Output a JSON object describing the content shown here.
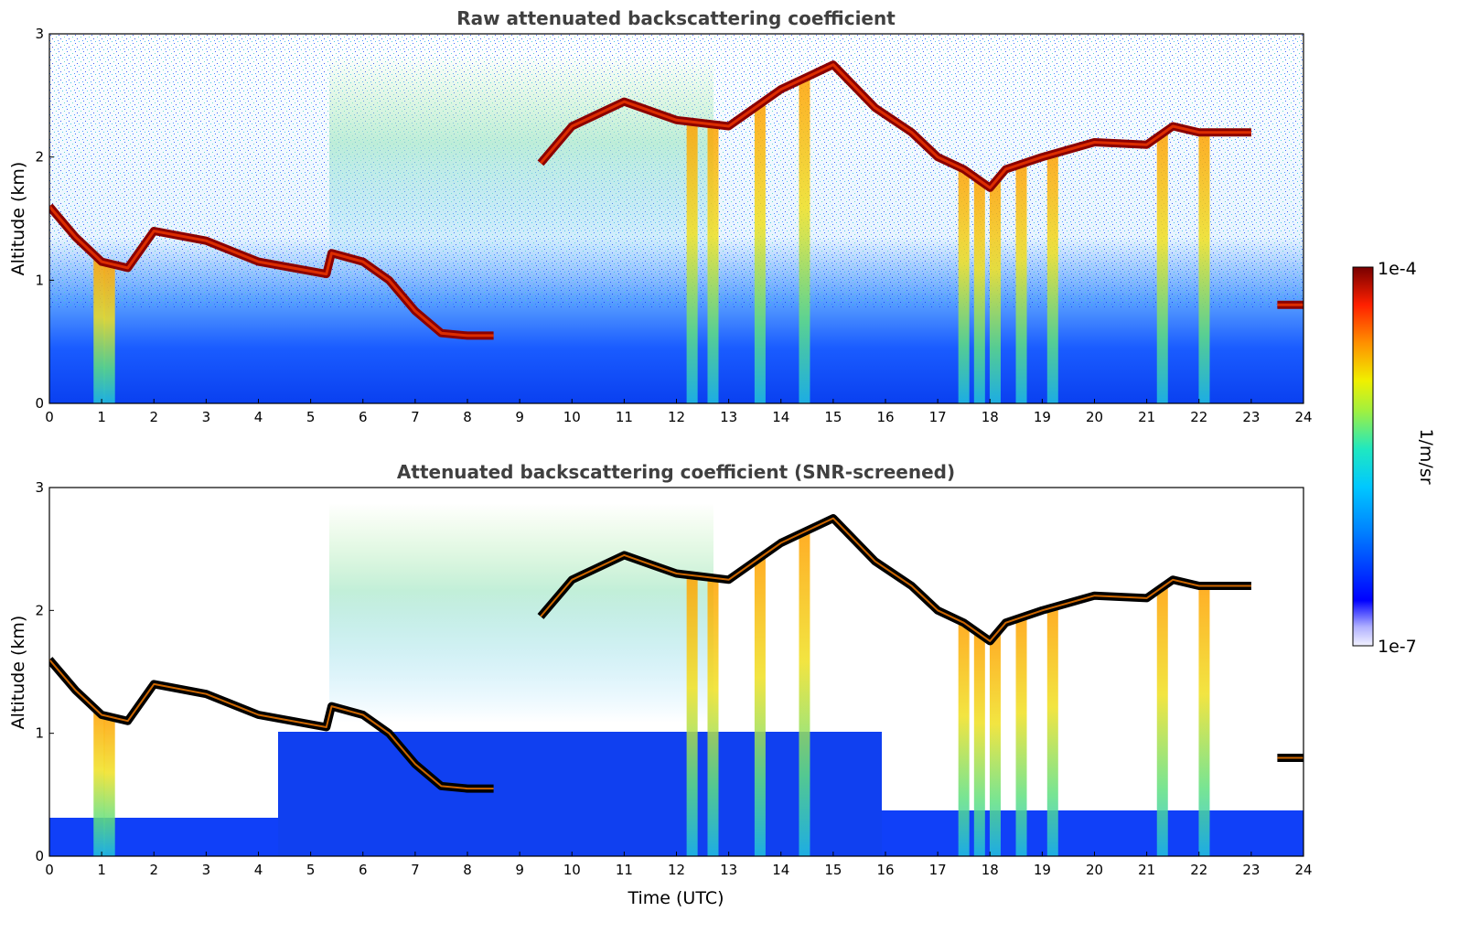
{
  "chart_data": [
    {
      "type": "heatmap",
      "title": "Raw attenuated backscattering coefficient",
      "xlabel": "",
      "ylabel": "Altitude (km)",
      "xlim": [
        0,
        24
      ],
      "ylim": [
        0,
        3
      ],
      "x_ticks": [
        "0",
        "1",
        "2",
        "3",
        "4",
        "5",
        "6",
        "7",
        "8",
        "9",
        "10",
        "11",
        "12",
        "13",
        "14",
        "15",
        "16",
        "17",
        "18",
        "19",
        "20",
        "21",
        "22",
        "23",
        "24"
      ],
      "y_ticks": [
        "0",
        "1",
        "2",
        "3"
      ],
      "cloud_layer": {
        "time": [
          0,
          0.5,
          1,
          1.5,
          2,
          3,
          4,
          5.3,
          5.4,
          6,
          6.5,
          7,
          7.5,
          8,
          8.5,
          9.4,
          10,
          11,
          12,
          13,
          14,
          15,
          15.8,
          16.5,
          17,
          17.5,
          18,
          18.3,
          19,
          20,
          21,
          21.5,
          22,
          23,
          23.5,
          24
        ],
        "altitude_km": [
          1.6,
          1.35,
          1.15,
          1.1,
          1.4,
          1.32,
          1.15,
          1.05,
          1.22,
          1.15,
          1.0,
          0.75,
          0.57,
          0.55,
          0.55,
          1.95,
          2.25,
          2.45,
          2.3,
          2.25,
          2.55,
          2.75,
          2.4,
          2.2,
          2.0,
          1.9,
          1.75,
          1.9,
          2.0,
          2.12,
          2.1,
          2.25,
          2.2,
          2.2,
          0.8,
          0.8
        ]
      }
    },
    {
      "type": "heatmap",
      "title": "Attenuated backscattering coefficient (SNR-screened)",
      "xlabel": "Time (UTC)",
      "ylabel": "Altitude (km)",
      "xlim": [
        0,
        24
      ],
      "ylim": [
        0,
        3
      ],
      "x_ticks": [
        "0",
        "1",
        "2",
        "3",
        "4",
        "5",
        "6",
        "7",
        "8",
        "9",
        "10",
        "11",
        "12",
        "13",
        "14",
        "15",
        "16",
        "17",
        "18",
        "19",
        "20",
        "21",
        "22",
        "23",
        "24"
      ],
      "y_ticks": [
        "0",
        "1",
        "2",
        "3"
      ],
      "cloud_layer": {
        "time": [
          0,
          0.5,
          1,
          1.5,
          2,
          3,
          4,
          5.3,
          5.4,
          6,
          6.5,
          7,
          7.5,
          8,
          8.5,
          9.4,
          10,
          11,
          12,
          13,
          14,
          15,
          15.8,
          16.5,
          17,
          17.5,
          18,
          18.3,
          19,
          20,
          21,
          21.5,
          22,
          23,
          23.5,
          24
        ],
        "altitude_km": [
          1.6,
          1.35,
          1.15,
          1.1,
          1.4,
          1.32,
          1.15,
          1.05,
          1.22,
          1.15,
          1.0,
          0.75,
          0.57,
          0.55,
          0.55,
          1.95,
          2.25,
          2.45,
          2.3,
          2.25,
          2.55,
          2.75,
          2.4,
          2.2,
          2.0,
          1.9,
          1.75,
          1.9,
          2.0,
          2.12,
          2.1,
          2.25,
          2.2,
          2.2,
          0.8,
          0.8
        ]
      }
    }
  ],
  "colorbar": {
    "label": "1/m/sr",
    "max_label": "1e-4",
    "min_label": "1e-7",
    "scale": "log",
    "colors": [
      "#f2f2ff",
      "#0000ff",
      "#00a8ff",
      "#20e0c0",
      "#e8e820",
      "#ff8000",
      "#e00000",
      "#780000"
    ]
  }
}
